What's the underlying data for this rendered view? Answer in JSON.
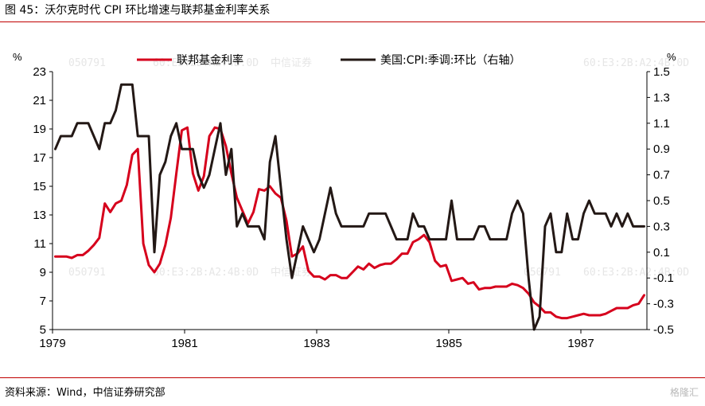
{
  "header": {
    "title": "图 45：沃尔克时代 CPI 环比增速与联邦基金利率关系"
  },
  "footer": {
    "source": "资料来源：Wind，中信证券研究部",
    "brand": "格隆汇"
  },
  "watermarks": [
    "050791",
    "60:E3:2B:A2:4B:0D",
    "中信证券"
  ],
  "chart_data": {
    "type": "line",
    "x_label_ticks": [
      "1979",
      "1981",
      "1983",
      "1985",
      "1987"
    ],
    "left_axis": {
      "unit": "%",
      "ylim": [
        5,
        23
      ],
      "ticks": [
        "5",
        "7",
        "9",
        "11",
        "13",
        "15",
        "17",
        "19",
        "21",
        "23"
      ]
    },
    "right_axis": {
      "unit": "%",
      "ylim": [
        -0.5,
        1.5
      ],
      "ticks": [
        "-0.5",
        "-0.3",
        "-0.1",
        "0.1",
        "0.3",
        "0.5",
        "0.7",
        "0.9",
        "1.1",
        "1.3",
        "1.5"
      ]
    },
    "legend_position": "top",
    "series": [
      {
        "name": "联邦基金利率",
        "axis": "left",
        "color": "#d6001c",
        "x_start": "1979-01",
        "x_step": "month",
        "values": [
          10.1,
          10.1,
          10.1,
          10.0,
          10.2,
          10.2,
          10.5,
          10.9,
          11.4,
          13.8,
          13.2,
          13.8,
          14.0,
          15.1,
          17.2,
          17.6,
          11.0,
          9.5,
          9.0,
          9.6,
          10.9,
          12.8,
          15.9,
          18.9,
          19.1,
          15.9,
          14.7,
          15.7,
          18.5,
          19.1,
          19.0,
          17.8,
          15.9,
          14.2,
          13.3,
          12.4,
          13.2,
          14.8,
          14.7,
          15.0,
          14.5,
          14.2,
          12.6,
          10.1,
          10.3,
          10.8,
          9.1,
          8.7,
          8.7,
          8.5,
          8.8,
          8.8,
          8.6,
          8.6,
          9.0,
          9.4,
          9.2,
          9.6,
          9.3,
          9.5,
          9.6,
          9.6,
          9.9,
          10.3,
          10.3,
          11.1,
          11.3,
          11.6,
          11.1,
          9.8,
          9.4,
          9.5,
          8.4,
          8.5,
          8.6,
          8.2,
          8.3,
          7.8,
          7.9,
          7.9,
          8.0,
          8.0,
          8.0,
          8.2,
          8.1,
          7.9,
          7.5,
          6.9,
          6.6,
          6.2,
          6.2,
          5.9,
          5.8,
          5.8,
          5.9,
          6.0,
          6.1,
          6.0,
          6.0,
          6.0,
          6.1,
          6.3,
          6.5,
          6.5,
          6.5,
          6.7,
          6.8,
          7.4
        ]
      },
      {
        "name": "美国:CPI:季调:环比（右轴）",
        "axis": "right",
        "color": "#231815",
        "x_start": "1979-01",
        "x_step": "month",
        "values": [
          0.9,
          1.0,
          1.0,
          1.0,
          1.1,
          1.1,
          1.1,
          1.0,
          0.9,
          1.1,
          1.1,
          1.2,
          1.4,
          1.4,
          1.4,
          1.0,
          1.0,
          1.0,
          0.1,
          0.7,
          0.8,
          1.0,
          1.1,
          0.9,
          0.9,
          0.9,
          0.7,
          0.6,
          0.7,
          0.9,
          1.1,
          0.7,
          0.9,
          0.3,
          0.4,
          0.3,
          0.3,
          0.3,
          0.2,
          0.8,
          1.0,
          0.6,
          0.2,
          -0.1,
          0.1,
          0.3,
          0.2,
          0.1,
          0.2,
          0.4,
          0.6,
          0.4,
          0.3,
          0.3,
          0.3,
          0.3,
          0.3,
          0.4,
          0.4,
          0.4,
          0.4,
          0.3,
          0.2,
          0.2,
          0.2,
          0.4,
          0.3,
          0.3,
          0.2,
          0.2,
          0.2,
          0.2,
          0.5,
          0.2,
          0.2,
          0.2,
          0.2,
          0.3,
          0.3,
          0.2,
          0.2,
          0.2,
          0.2,
          0.4,
          0.5,
          0.4,
          -0.1,
          -0.5,
          -0.4,
          0.3,
          0.4,
          0.1,
          0.1,
          0.4,
          0.2,
          0.2,
          0.4,
          0.5,
          0.4,
          0.4,
          0.4,
          0.3,
          0.4,
          0.3,
          0.4,
          0.3,
          0.3,
          0.3
        ]
      }
    ]
  }
}
